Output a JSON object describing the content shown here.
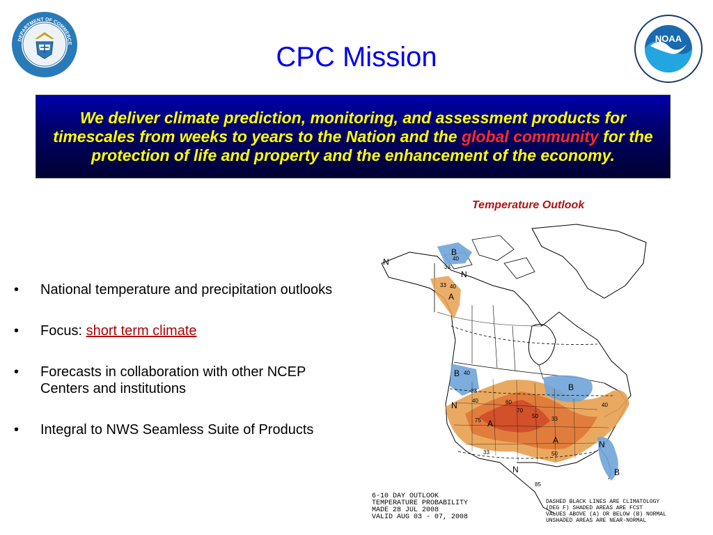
{
  "title": "CPC Mission",
  "mission": {
    "part1": "We deliver climate prediction, monitoring, and assessment products for timescales from weeks to years to the Nation and the ",
    "highlight": "global community",
    "part2": " for the protection of life and property and the enhancement of the economy."
  },
  "map_caption": "Temperature Outlook",
  "bullets": [
    {
      "text": "National temperature and precipitation outlooks"
    },
    {
      "prefix": "Focus: ",
      "link": "short term climate"
    },
    {
      "text": "Forecasts in collaboration with other NCEP Centers and institutions"
    },
    {
      "text": "Integral to NWS Seamless Suite of Products"
    }
  ],
  "map": {
    "header_lines": [
      "6-10 DAY OUTLOOK",
      "TEMPERATURE PROBABILITY",
      "MADE   28 JUL 2008",
      "VALID  AUG 03 - 07, 2008"
    ],
    "legend_lines": [
      "DASHED BLACK LINES ARE CLIMATOLOGY",
      "(DEG F) SHADED AREAS ARE FCST",
      "VALUES ABOVE (A) OR BELOW (B) NORMAL",
      "UNSHADED AREAS ARE NEAR-NORMAL"
    ],
    "labels": {
      "n": "N",
      "a": "A",
      "b": "B",
      "v33": "33",
      "v40": "40",
      "v50": "50",
      "v60": "60",
      "v70": "70",
      "v85": "85",
      "v75": "75"
    },
    "colors": {
      "above_light": "#e8a050",
      "above_mid": "#e07a3a",
      "above_dark": "#d2502a",
      "below": "#6fa4d8"
    }
  },
  "logos": {
    "doc_text": "DEPARTMENT OF COMMERCE · UNITED STATES OF AMERICA",
    "noaa_text": "NOAA"
  }
}
